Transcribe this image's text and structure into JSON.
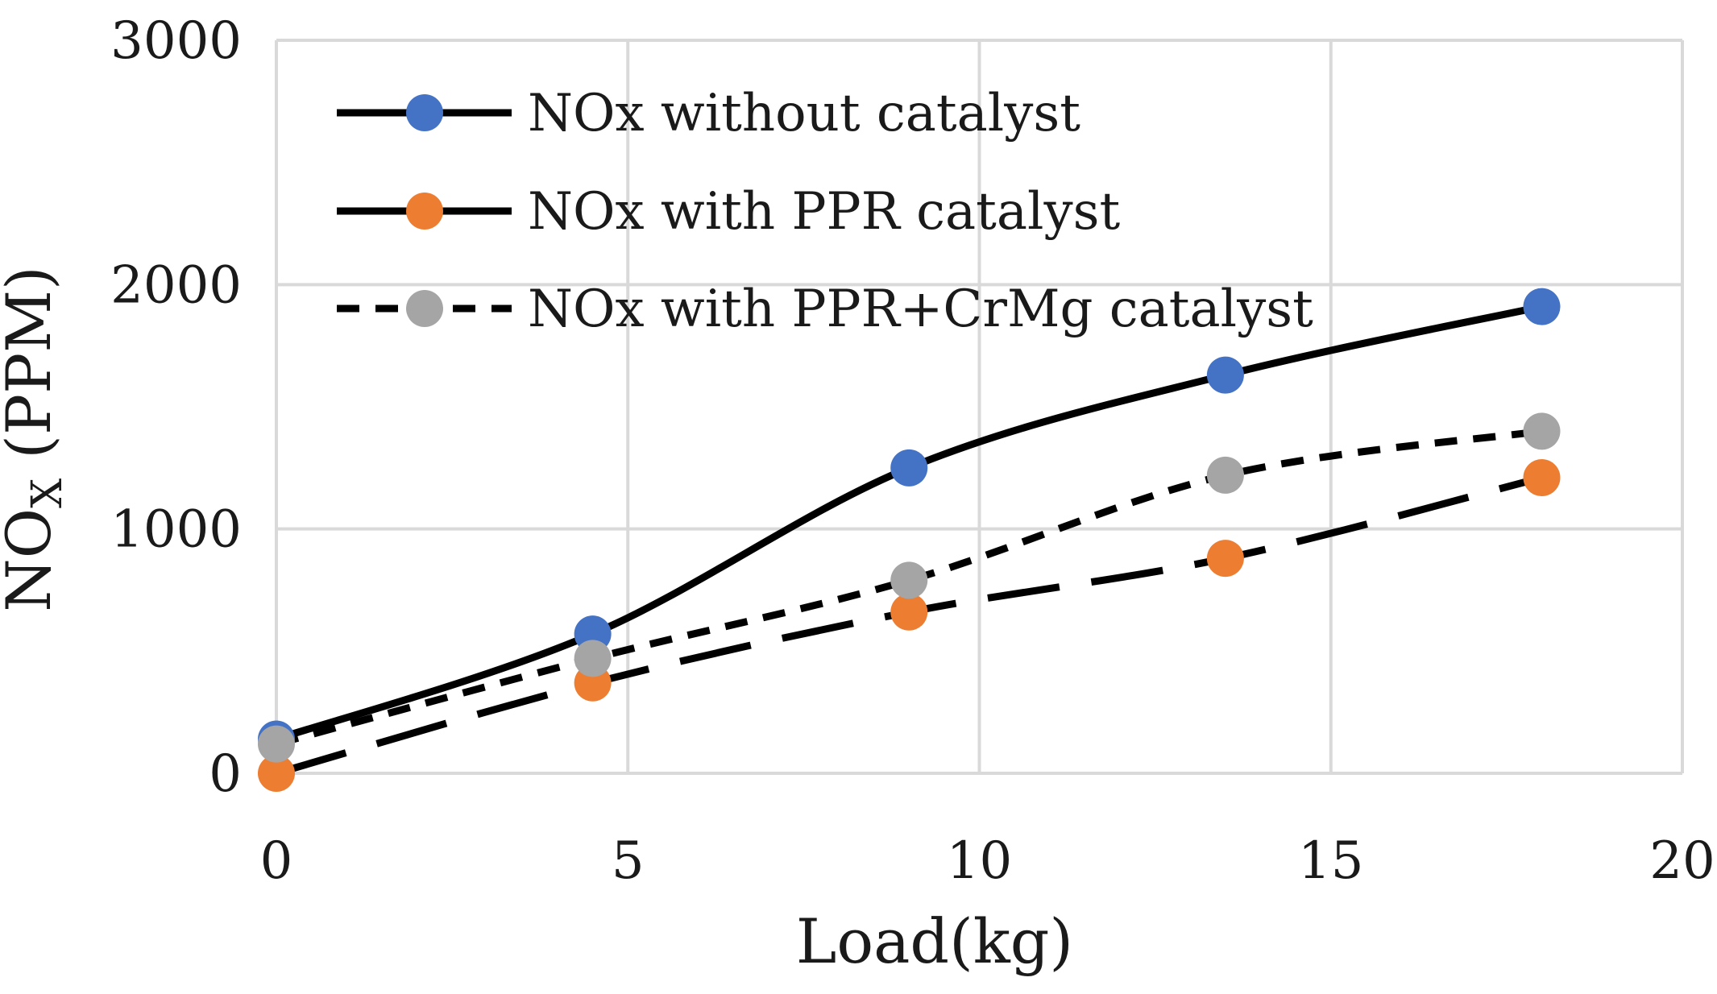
{
  "chart_data": {
    "type": "line",
    "title": "",
    "xlabel": "Load(kg)",
    "ylabel": {
      "main": "NO",
      "sub": "X",
      "unit": " (PPM)"
    },
    "xlim": [
      0,
      20
    ],
    "ylim": [
      0,
      3000
    ],
    "xticks": [
      "0",
      "5",
      "10",
      "15",
      "20"
    ],
    "yticks": [
      "0",
      "1000",
      "2000",
      "3000"
    ],
    "grid": true,
    "legend_position": "top-left",
    "x": [
      0,
      4.5,
      9,
      13.5,
      18
    ],
    "series": [
      {
        "name": "NOx without catalyst",
        "values": [
          140,
          570,
          1250,
          1630,
          1910
        ],
        "marker_color": "#4472C4",
        "line_style": "solid"
      },
      {
        "name": "NOx with PPR catalyst",
        "values": [
          0,
          370,
          660,
          880,
          1210
        ],
        "marker_color": "#ED7D31",
        "line_style": "long-dash"
      },
      {
        "name": "NOx with PPR+CrMg catalyst",
        "values": [
          120,
          470,
          790,
          1220,
          1400
        ],
        "marker_color": "#A5A5A5",
        "line_style": "short-dash"
      }
    ]
  }
}
